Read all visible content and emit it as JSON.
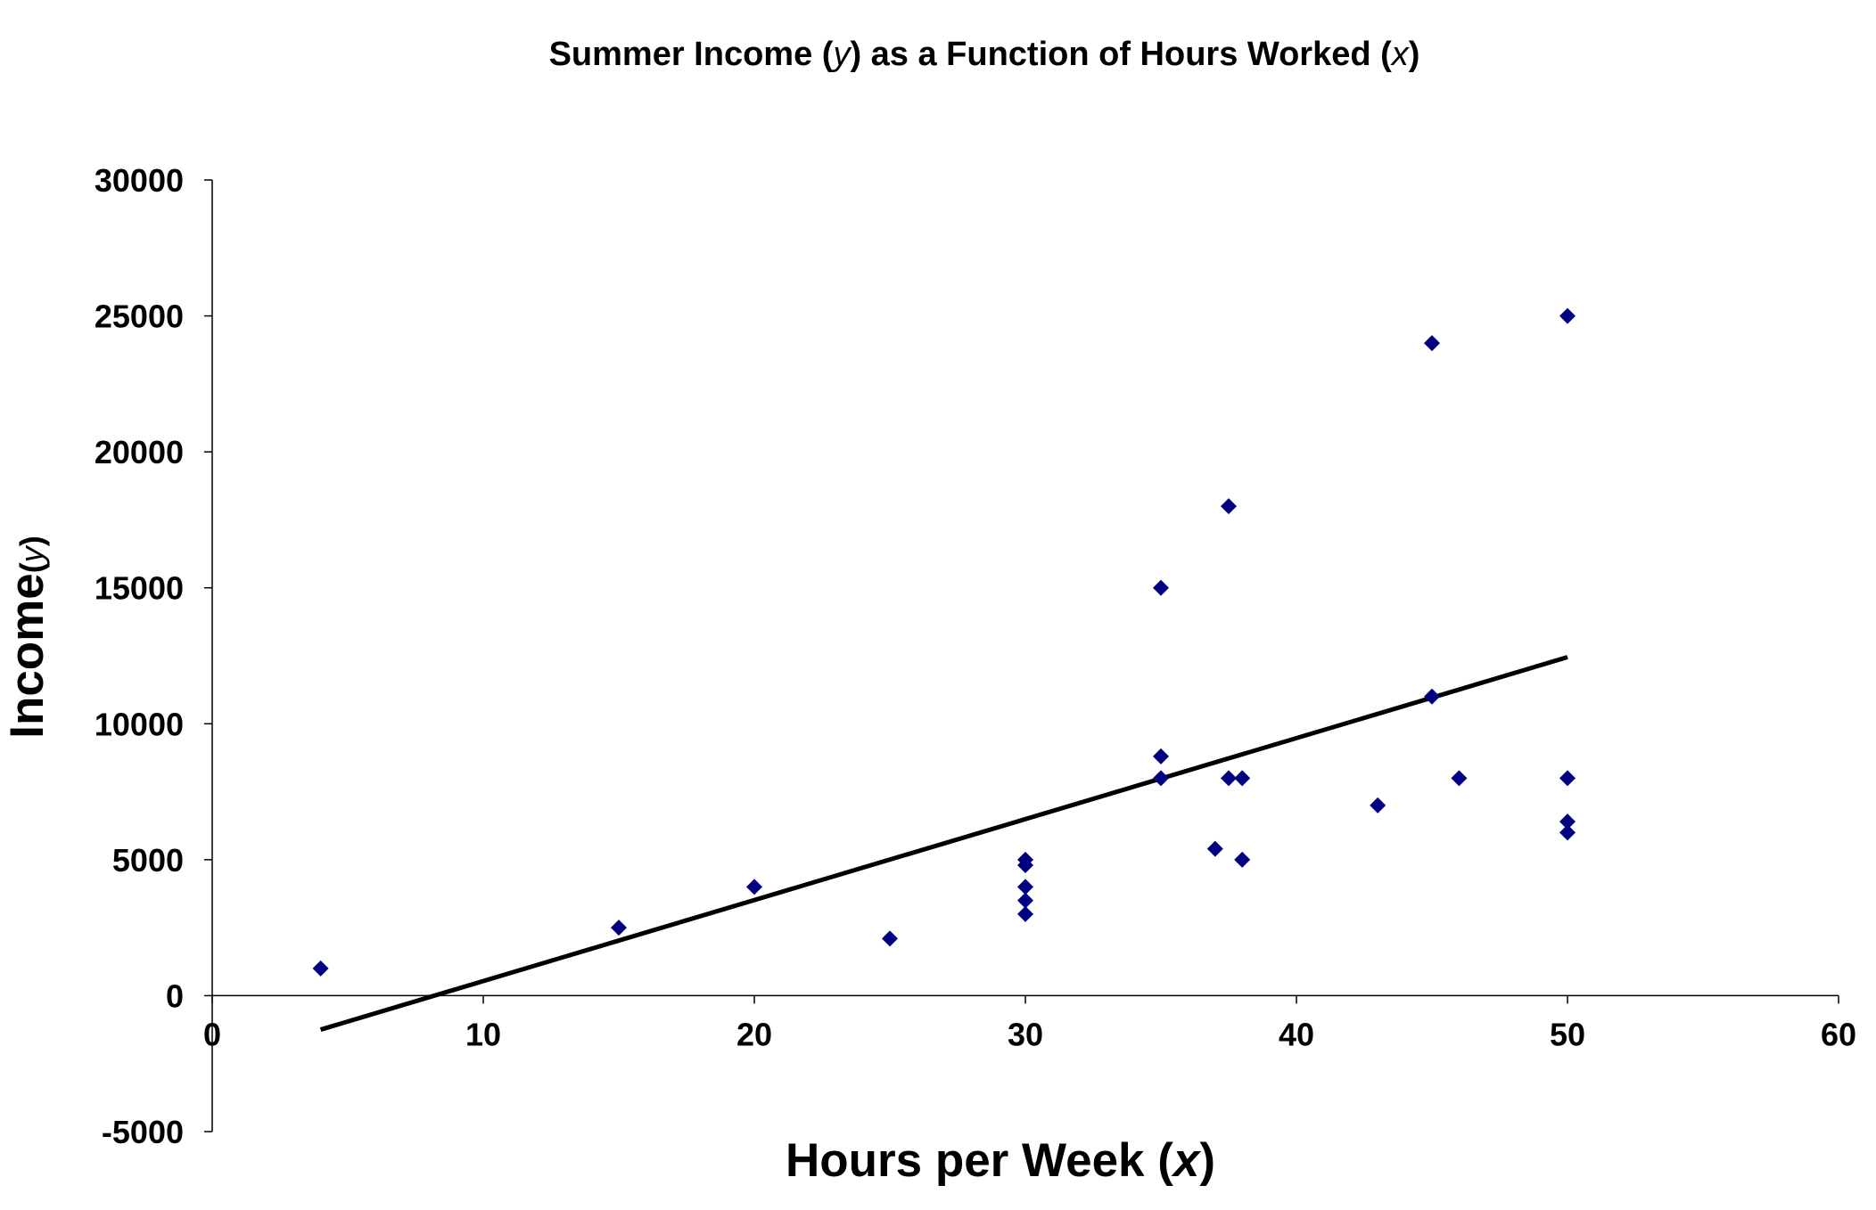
{
  "chart_data": {
    "type": "scatter",
    "title": {
      "pre": "Summer Income (",
      "var": "y",
      "mid": ") as a Function of Hours Worked (",
      "var2": "x",
      "post": ")"
    },
    "xlabel": {
      "text": "Hours per Week  (",
      "var": "x",
      "post": ")"
    },
    "ylabel": {
      "text": "Income",
      "open": "(",
      "var": "y",
      "close": ")"
    },
    "xlim": [
      0,
      60
    ],
    "ylim": [
      -5000,
      30000
    ],
    "x_ticks": [
      0,
      10,
      20,
      30,
      40,
      50,
      60
    ],
    "y_ticks": [
      -5000,
      0,
      5000,
      10000,
      15000,
      20000,
      25000,
      30000
    ],
    "x_tick_labels": [
      "0",
      "10",
      "20",
      "30",
      "40",
      "50",
      "60"
    ],
    "y_tick_labels": [
      "-5000",
      "0",
      "5000",
      "10000",
      "15000",
      "20000",
      "25000",
      "30000"
    ],
    "grid": false,
    "legend": "none",
    "marker": "diamond",
    "marker_color": "#000080",
    "line_color": "#000000",
    "points": [
      {
        "x": 4,
        "y": 1000
      },
      {
        "x": 15,
        "y": 2500
      },
      {
        "x": 20,
        "y": 4000
      },
      {
        "x": 25,
        "y": 2100
      },
      {
        "x": 30,
        "y": 3000
      },
      {
        "x": 30,
        "y": 3500
      },
      {
        "x": 30,
        "y": 4000
      },
      {
        "x": 30,
        "y": 4800
      },
      {
        "x": 30,
        "y": 5000
      },
      {
        "x": 35,
        "y": 8000
      },
      {
        "x": 35,
        "y": 8800
      },
      {
        "x": 35,
        "y": 15000
      },
      {
        "x": 37,
        "y": 5400
      },
      {
        "x": 37.5,
        "y": 8000
      },
      {
        "x": 37.5,
        "y": 18000
      },
      {
        "x": 38,
        "y": 5000
      },
      {
        "x": 38,
        "y": 8000
      },
      {
        "x": 43,
        "y": 7000
      },
      {
        "x": 45,
        "y": 11000
      },
      {
        "x": 45,
        "y": 24000
      },
      {
        "x": 46,
        "y": 8000
      },
      {
        "x": 50,
        "y": 6000
      },
      {
        "x": 50,
        "y": 6400
      },
      {
        "x": 50,
        "y": 8000
      },
      {
        "x": 50,
        "y": 25000
      }
    ],
    "trendline": {
      "type": "linear",
      "x_start": 4,
      "y_start": -1250,
      "x_end": 50,
      "y_end": 12450
    }
  }
}
